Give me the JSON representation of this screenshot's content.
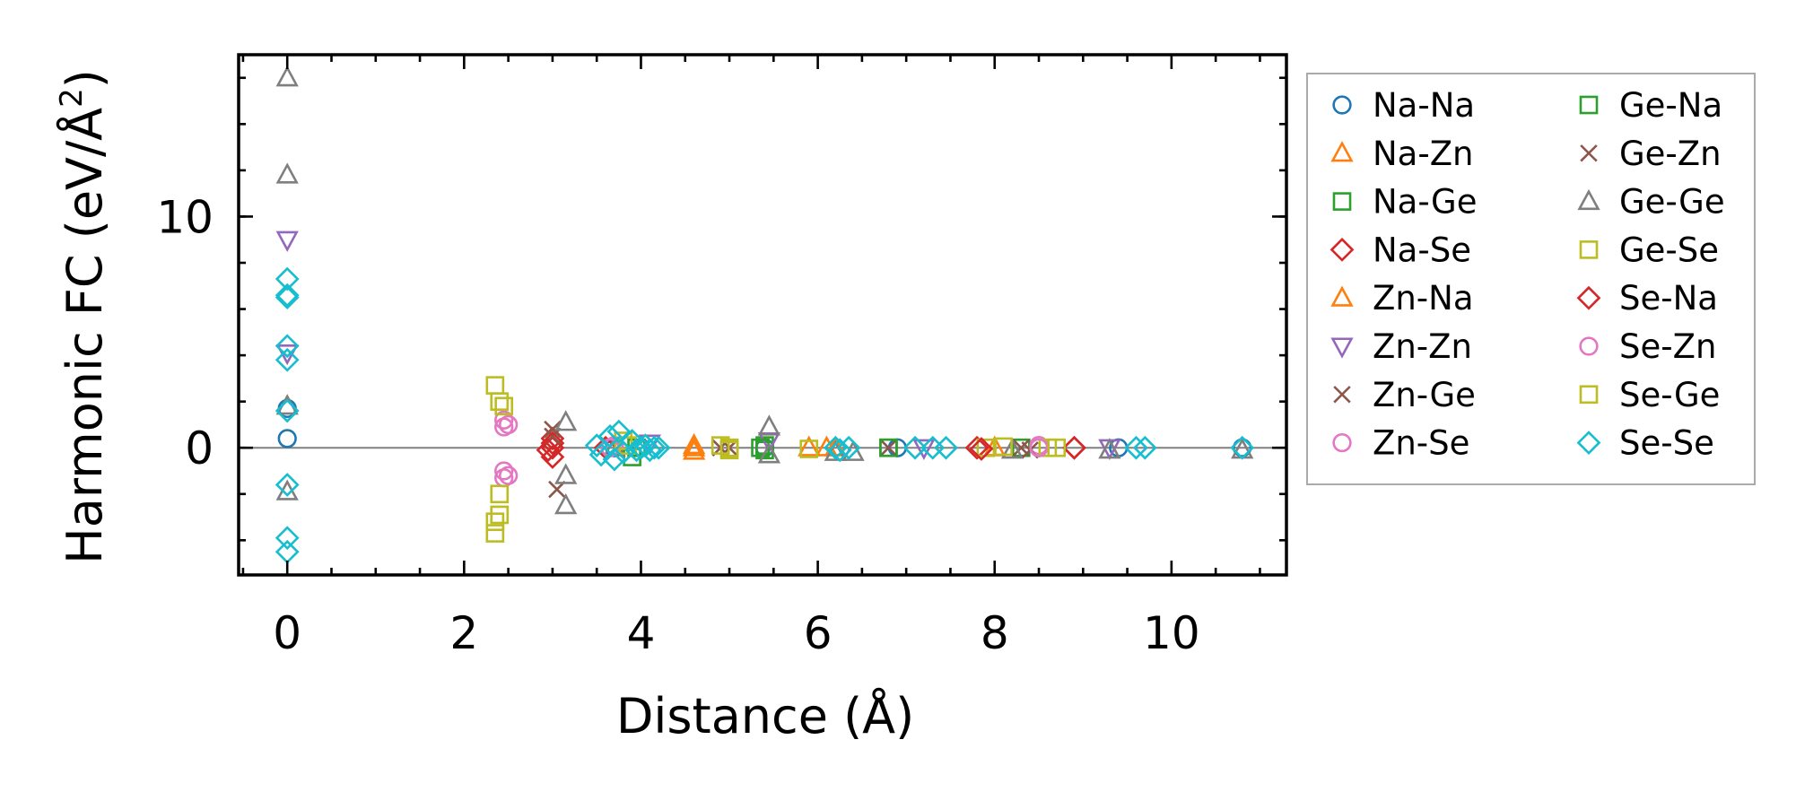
{
  "chart_data": {
    "type": "scatter",
    "xlabel": "Distance (Å)",
    "ylabel_main": "Harmonic FC (eV/Å",
    "ylabel_sup": "2",
    "ylabel_end": ")",
    "xlim": [
      -0.55,
      11.3
    ],
    "ylim": [
      -5.5,
      17.0
    ],
    "x_ticks": [
      0,
      2,
      4,
      6,
      8,
      10
    ],
    "x_tick_labels": [
      "0",
      "2",
      "4",
      "6",
      "8",
      "10"
    ],
    "x_minor_step": 0.5,
    "y_ticks": [
      0,
      10
    ],
    "y_tick_labels": [
      "0",
      "10"
    ],
    "y_minor_step": 2,
    "zero_line": true,
    "grid": false,
    "legend": {
      "placement": "outside-right",
      "columns": 2
    },
    "series": [
      {
        "name": "Na-Na",
        "color": "#1f77b4",
        "marker": "circle",
        "points": [
          [
            0,
            0.4
          ],
          [
            0,
            1.7
          ],
          [
            3.7,
            0.0
          ],
          [
            4.0,
            0.0
          ],
          [
            5.4,
            0.0
          ],
          [
            6.9,
            0.0
          ],
          [
            9.4,
            0.0
          ],
          [
            10.8,
            0.0
          ]
        ]
      },
      {
        "name": "Na-Zn",
        "color": "#ff7f0e",
        "marker": "triangle-up",
        "points": [
          [
            4.6,
            0.0
          ],
          [
            4.6,
            -0.15
          ],
          [
            6.1,
            0.0
          ],
          [
            8.0,
            0.0
          ]
        ]
      },
      {
        "name": "Na-Ge",
        "color": "#2ca02c",
        "marker": "square",
        "points": [
          [
            3.9,
            -0.4
          ],
          [
            5.4,
            0.1
          ],
          [
            5.4,
            -0.1
          ],
          [
            6.8,
            0.0
          ],
          [
            8.3,
            0.0
          ]
        ]
      },
      {
        "name": "Na-Se",
        "color": "#d62728",
        "marker": "diamond",
        "points": [
          [
            3.0,
            0.4
          ],
          [
            3.0,
            0.0
          ],
          [
            3.0,
            -0.4
          ],
          [
            3.6,
            0.0
          ],
          [
            7.8,
            0.0
          ],
          [
            8.9,
            0.0
          ]
        ]
      },
      {
        "name": "Zn-Na",
        "color": "#ff7f0e",
        "marker": "triangle-up",
        "points": [
          [
            4.6,
            0.1
          ],
          [
            5.9,
            0.0
          ],
          [
            6.2,
            0.0
          ]
        ]
      },
      {
        "name": "Zn-Zn",
        "color": "#9467bd",
        "marker": "triangle-down",
        "points": [
          [
            0,
            9.0
          ],
          [
            0,
            4.1
          ],
          [
            4.1,
            0.2
          ],
          [
            5.45,
            0.3
          ],
          [
            7.2,
            0.0
          ],
          [
            9.3,
            0.0
          ]
        ]
      },
      {
        "name": "Zn-Ge",
        "color": "#8c564b",
        "marker": "x",
        "points": [
          [
            3.0,
            0.8
          ],
          [
            3.05,
            -1.8
          ],
          [
            5.0,
            0.0
          ],
          [
            6.8,
            0.0
          ],
          [
            8.3,
            0.0
          ]
        ]
      },
      {
        "name": "Zn-Se",
        "color": "#e377c2",
        "marker": "circle",
        "points": [
          [
            2.45,
            1.2
          ],
          [
            2.45,
            0.9
          ],
          [
            2.45,
            -1.0
          ],
          [
            2.45,
            -1.3
          ],
          [
            3.7,
            0.1
          ],
          [
            8.5,
            0.1
          ]
        ]
      },
      {
        "name": "Ge-Na",
        "color": "#2ca02c",
        "marker": "square",
        "points": [
          [
            3.95,
            0.0
          ],
          [
            5.35,
            0.0
          ],
          [
            6.8,
            0.0
          ]
        ]
      },
      {
        "name": "Ge-Zn",
        "color": "#8c564b",
        "marker": "x",
        "points": [
          [
            3.0,
            0.5
          ],
          [
            4.9,
            0.0
          ],
          [
            8.4,
            -0.1
          ]
        ]
      },
      {
        "name": "Ge-Ge",
        "color": "#7f7f7f",
        "marker": "triangle-up",
        "points": [
          [
            0,
            16.0
          ],
          [
            0,
            11.8
          ],
          [
            0,
            1.8
          ],
          [
            0,
            -1.9
          ],
          [
            3.15,
            1.1
          ],
          [
            3.15,
            -1.2
          ],
          [
            3.15,
            -2.5
          ],
          [
            3.7,
            0.0
          ],
          [
            5.45,
            0.9
          ],
          [
            5.45,
            -0.3
          ],
          [
            6.2,
            -0.2
          ],
          [
            6.4,
            -0.2
          ],
          [
            8.2,
            -0.1
          ],
          [
            9.3,
            -0.1
          ],
          [
            10.8,
            -0.1
          ]
        ]
      },
      {
        "name": "Ge-Se",
        "color": "#bcbd22",
        "marker": "square",
        "points": [
          [
            2.35,
            2.7
          ],
          [
            2.4,
            2.0
          ],
          [
            2.4,
            -2.0
          ],
          [
            2.4,
            -2.9
          ],
          [
            2.35,
            -3.7
          ],
          [
            3.8,
            0.3
          ],
          [
            4.9,
            0.1
          ],
          [
            5.0,
            0.0
          ],
          [
            5.9,
            -0.05
          ],
          [
            7.9,
            0.0
          ],
          [
            8.6,
            0.0
          ]
        ]
      },
      {
        "name": "Se-Na",
        "color": "#d62728",
        "marker": "diamond",
        "points": [
          [
            2.95,
            -0.1
          ],
          [
            3.0,
            0.2
          ],
          [
            7.85,
            -0.05
          ],
          [
            8.9,
            0.0
          ]
        ]
      },
      {
        "name": "Se-Zn",
        "color": "#e377c2",
        "marker": "circle",
        "points": [
          [
            2.5,
            1.0
          ],
          [
            2.5,
            -1.2
          ],
          [
            3.65,
            0.0
          ],
          [
            8.5,
            0.0
          ]
        ]
      },
      {
        "name": "Se-Ge",
        "color": "#bcbd22",
        "marker": "square",
        "points": [
          [
            2.35,
            -3.2
          ],
          [
            2.45,
            1.8
          ],
          [
            3.85,
            0.1
          ],
          [
            5.0,
            -0.1
          ],
          [
            8.1,
            0.05
          ],
          [
            8.7,
            0.0
          ]
        ]
      },
      {
        "name": "Se-Se",
        "color": "#17becf",
        "marker": "diamond",
        "points": [
          [
            0,
            7.3
          ],
          [
            0,
            6.6
          ],
          [
            0,
            6.5
          ],
          [
            0,
            4.4
          ],
          [
            0,
            3.8
          ],
          [
            0,
            1.6
          ],
          [
            0,
            -1.6
          ],
          [
            0,
            -3.9
          ],
          [
            0,
            -4.5
          ],
          [
            3.5,
            0.1
          ],
          [
            3.55,
            -0.3
          ],
          [
            3.65,
            0.5
          ],
          [
            3.7,
            -0.5
          ],
          [
            3.75,
            0.7
          ],
          [
            3.8,
            -0.2
          ],
          [
            3.9,
            0.3
          ],
          [
            3.95,
            -0.1
          ],
          [
            4.0,
            0.0
          ],
          [
            4.05,
            0.1
          ],
          [
            4.1,
            -0.1
          ],
          [
            4.15,
            0.0
          ],
          [
            4.2,
            0.0
          ],
          [
            6.2,
            0.0
          ],
          [
            6.25,
            -0.1
          ],
          [
            6.35,
            0.0
          ],
          [
            7.1,
            0.0
          ],
          [
            7.3,
            0.0
          ],
          [
            7.45,
            0.0
          ],
          [
            9.6,
            0.0
          ],
          [
            9.7,
            0.0
          ],
          [
            10.8,
            0.0
          ]
        ]
      }
    ]
  }
}
